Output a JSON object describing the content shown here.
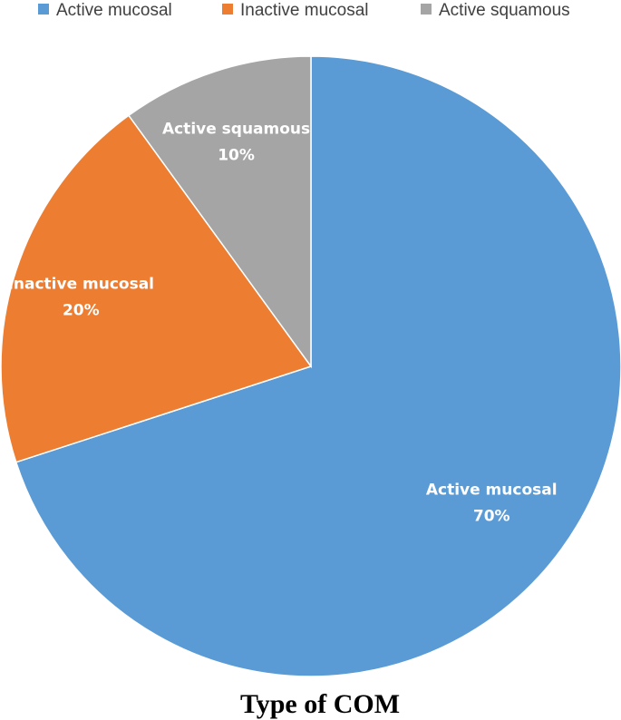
{
  "chart_data": {
    "type": "pie",
    "title": "Type of COM",
    "legend_position": "top",
    "categories": [
      "Active mucosal",
      "Inactive mucosal",
      "Active squamous"
    ],
    "values": [
      70,
      20,
      10
    ],
    "unit": "%",
    "data_labels": [
      "70%",
      "20%",
      "10%"
    ],
    "colors": [
      "#5b9bd5",
      "#ed7d31",
      "#a5a5a5"
    ]
  }
}
